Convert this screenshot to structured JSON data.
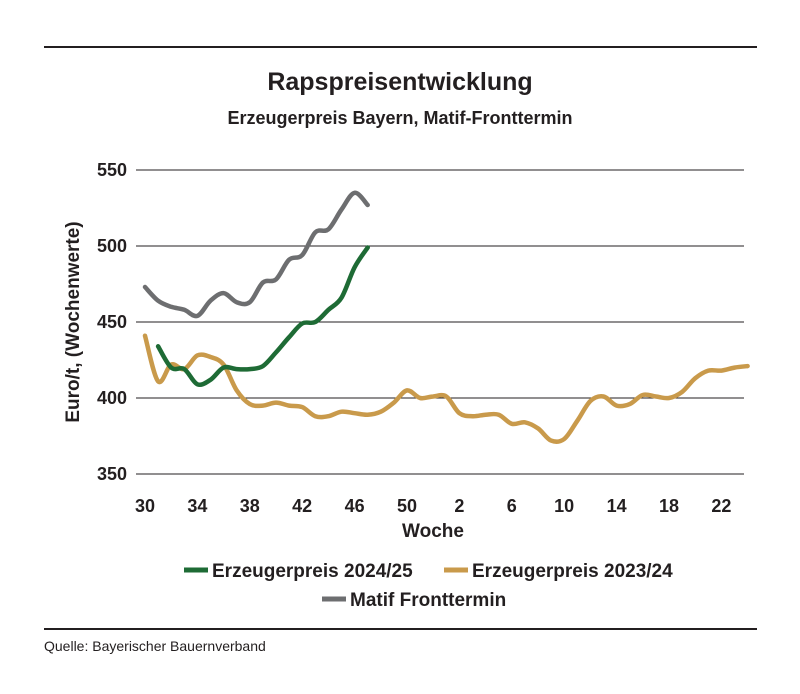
{
  "source": "Quelle: Bayerischer Bauernverband",
  "chart_data": {
    "type": "line",
    "title": "Rapspreisentwicklung",
    "subtitle": "Erzeugerpreis Bayern, Matif-Fronttermin",
    "xlabel": "Woche",
    "ylabel": "Euro/t, (Wochenwerte)",
    "ylim": [
      350,
      550
    ],
    "yticks": [
      350,
      400,
      450,
      500,
      550
    ],
    "grid": true,
    "legend_position": "bottom",
    "x_ticks": [
      "30",
      "34",
      "38",
      "42",
      "46",
      "50",
      "2",
      "6",
      "10",
      "14",
      "18",
      "22"
    ],
    "series": [
      {
        "name": "Erzeugerpreis 2024/25",
        "color": "#1e6b35",
        "x": [
          31,
          32,
          33,
          34,
          35,
          36,
          37,
          38,
          39,
          40,
          41,
          42,
          43,
          44,
          45,
          46,
          47
        ],
        "values": [
          434,
          420,
          419,
          409,
          412,
          420,
          419,
          419,
          421,
          430,
          440,
          449,
          450,
          458,
          466,
          486,
          499
        ]
      },
      {
        "name": "Erzeugerpreis 2023/24",
        "color": "#c99a4b",
        "x": [
          30,
          31,
          32,
          33,
          34,
          35,
          36,
          37,
          38,
          39,
          40,
          41,
          42,
          43,
          44,
          45,
          46,
          47,
          48,
          49,
          50,
          51,
          52,
          53,
          54,
          55,
          56,
          57,
          58,
          59,
          60,
          61,
          62,
          63,
          64,
          65,
          66,
          67,
          68,
          69,
          70,
          71,
          72,
          73,
          74,
          75,
          76
        ],
        "values": [
          441,
          411,
          422,
          419,
          428,
          427,
          422,
          405,
          396,
          395,
          397,
          395,
          394,
          388,
          388,
          391,
          390,
          389,
          391,
          397,
          405,
          400,
          401,
          401,
          390,
          388,
          389,
          389,
          383,
          384,
          380,
          372,
          373,
          385,
          398,
          401,
          395,
          396,
          402,
          401,
          400,
          404,
          413,
          418,
          418,
          420,
          421
        ]
      },
      {
        "name": "Matif Fronttermin",
        "color": "#6d6e70",
        "x": [
          30,
          31,
          32,
          33,
          34,
          35,
          36,
          37,
          38,
          39,
          40,
          41,
          42,
          43,
          44,
          45,
          46,
          47
        ],
        "values": [
          473,
          464,
          460,
          458,
          454,
          464,
          469,
          463,
          463,
          476,
          478,
          491,
          494,
          509,
          511,
          524,
          535,
          527
        ]
      }
    ]
  }
}
